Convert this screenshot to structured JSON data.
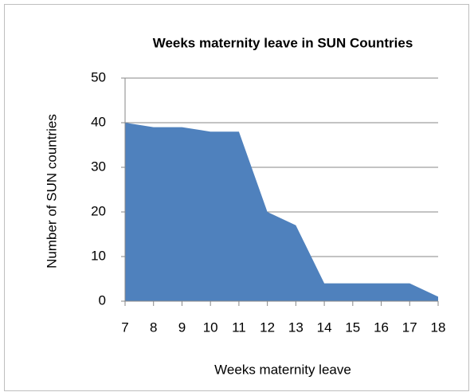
{
  "chart_data": {
    "type": "area",
    "title": "Weeks maternity leave in SUN Countries",
    "x_label": "Weeks maternity leave",
    "y_label": "Number of SUN countries",
    "x": [
      7,
      8,
      9,
      10,
      11,
      12,
      13,
      14,
      15,
      16,
      17,
      18
    ],
    "values": [
      40,
      39,
      39,
      38,
      38,
      20,
      17,
      4,
      4,
      4,
      4,
      1
    ],
    "color": "#4f81bd",
    "xlim": [
      7,
      18
    ],
    "xticks": [
      7,
      8,
      9,
      10,
      11,
      12,
      13,
      14,
      15,
      16,
      17,
      18
    ],
    "ylim": [
      0,
      50
    ],
    "yticks": [
      0,
      10,
      20,
      30,
      40,
      50
    ],
    "grid": true
  }
}
